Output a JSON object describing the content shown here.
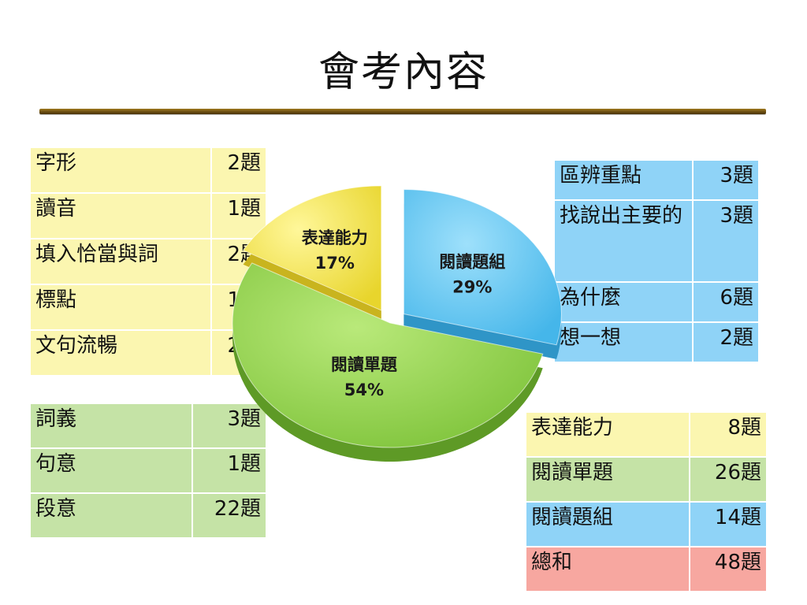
{
  "title": "會考內容",
  "table_yellow": [
    {
      "item": "字形",
      "count": "2題"
    },
    {
      "item": "讀音",
      "count": "1題"
    },
    {
      "item": "填入恰當與詞",
      "count": "2題"
    },
    {
      "item": "標點",
      "count": "1題"
    },
    {
      "item": "文句流暢",
      "count": "2題"
    }
  ],
  "table_green": [
    {
      "item": "詞義",
      "count": "3題"
    },
    {
      "item": "句意",
      "count": "1題"
    },
    {
      "item": "段意",
      "count": "22題"
    }
  ],
  "table_blue": [
    {
      "item": "區辨重點",
      "count": "3題"
    },
    {
      "item": "找說出主要的",
      "count": "3題"
    },
    {
      "item": "為什麼",
      "count": "6題"
    },
    {
      "item": "想一想",
      "count": "2題"
    }
  ],
  "table_summary": [
    {
      "item": "表達能力",
      "count": "8題"
    },
    {
      "item": "閱讀單題",
      "count": "26題"
    },
    {
      "item": "閱讀題組",
      "count": "14題"
    },
    {
      "item": "總和",
      "count": "48題"
    }
  ],
  "colors": {
    "yellow": "#f9ec5c",
    "green": "#95d24b",
    "blue": "#5cc3f1",
    "pink": "#f7a7a0"
  },
  "chart_data": {
    "type": "pie",
    "categories": [
      "表達能力",
      "閱讀題組",
      "閱讀單題"
    ],
    "values": [
      17,
      29,
      54
    ],
    "labels": [
      "17%",
      "29%",
      "54%"
    ],
    "exploded": [
      "表達能力",
      "閱讀題組"
    ]
  }
}
